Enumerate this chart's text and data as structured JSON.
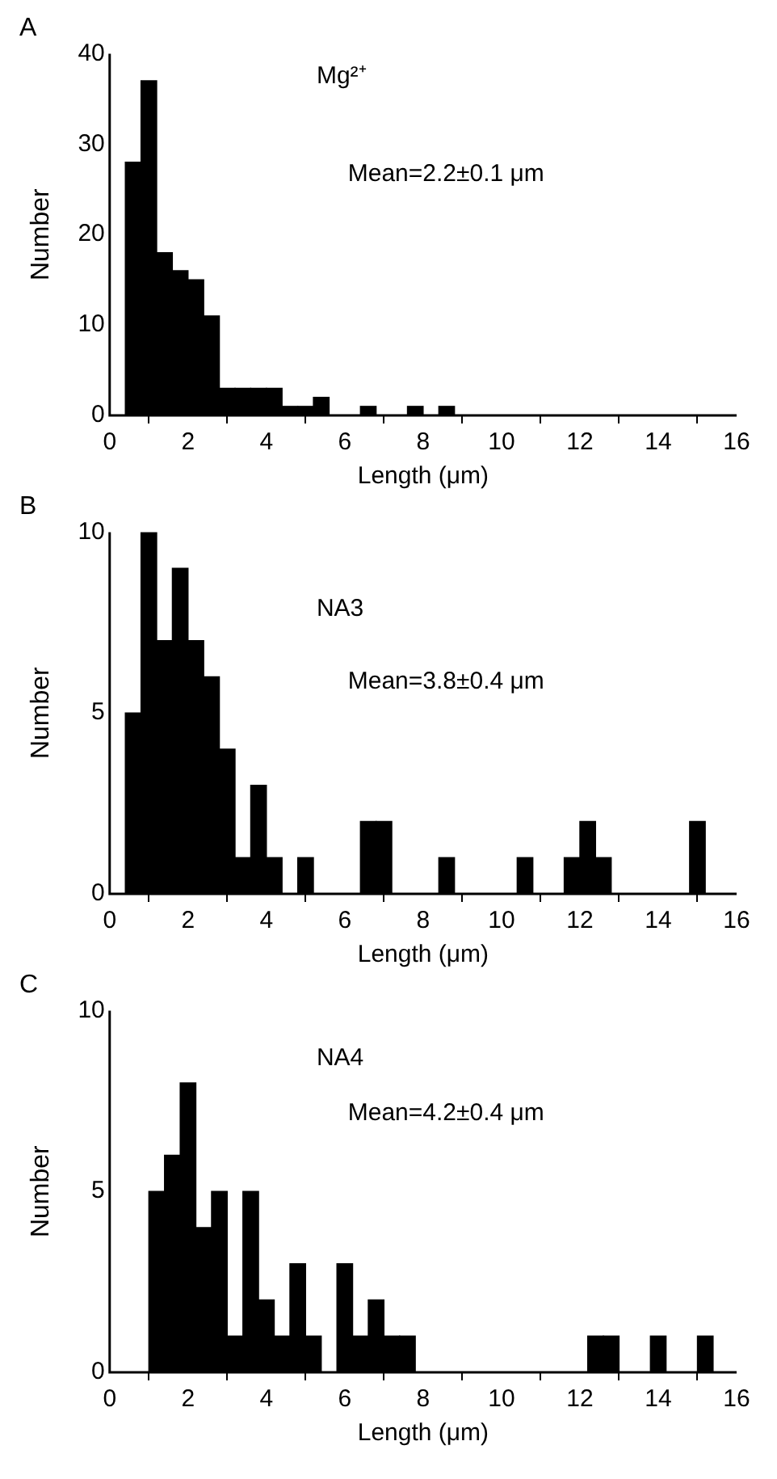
{
  "chart_data": [
    {
      "type": "histogram",
      "title": "A",
      "xlabel": "Length (μm)",
      "ylabel": "Number",
      "annotations": [
        "Mg²⁺",
        "Mean=2.2±0.1 μm"
      ],
      "color": "#000000",
      "bins": [
        0,
        0.4,
        0.8,
        1.2,
        1.6,
        2,
        2.4,
        2.8,
        3.2,
        3.6,
        4,
        4.4,
        4.8,
        5.2,
        5.6,
        6,
        6.4,
        6.8,
        7.2,
        7.6,
        8,
        8.4,
        8.8,
        9.2,
        9.6,
        10,
        10.4,
        10.8,
        11.2,
        11.6,
        12,
        12.4,
        12.8,
        13.2,
        13.6,
        14,
        14.4,
        14.8,
        15.2,
        15.6,
        16
      ],
      "values": [
        0,
        28,
        37,
        18,
        16,
        15,
        11,
        3,
        3,
        3,
        3,
        1,
        1,
        2,
        0,
        0,
        1,
        0,
        0,
        1,
        0,
        1,
        0,
        0,
        0,
        0,
        0,
        0,
        0,
        0,
        0,
        0,
        0,
        0,
        0,
        0,
        0,
        0,
        0,
        0
      ],
      "xlim": [
        0,
        16
      ],
      "xticks": [
        0,
        2,
        4,
        6,
        8,
        10,
        12,
        14,
        16
      ],
      "ylim": [
        0,
        40
      ],
      "yticks": [
        0,
        10,
        20,
        30,
        40
      ]
    },
    {
      "type": "histogram",
      "title": "B",
      "xlabel": "Length (μm)",
      "ylabel": "Number",
      "annotations": [
        "NA3",
        "Mean=3.8±0.4 μm"
      ],
      "color": "#000000",
      "bins": [
        0,
        0.4,
        0.8,
        1.2,
        1.6,
        2,
        2.4,
        2.8,
        3.2,
        3.6,
        4,
        4.4,
        4.8,
        5.2,
        5.6,
        6,
        6.4,
        6.8,
        7.2,
        7.6,
        8,
        8.4,
        8.8,
        9.2,
        9.6,
        10,
        10.4,
        10.8,
        11.2,
        11.6,
        12,
        12.4,
        12.8,
        13.2,
        13.6,
        14,
        14.4,
        14.8,
        15.2,
        15.6,
        16
      ],
      "values": [
        0,
        5,
        10,
        7,
        9,
        7,
        6,
        4,
        1,
        3,
        1,
        0,
        1,
        0,
        0,
        0,
        2,
        2,
        0,
        0,
        0,
        1,
        0,
        0,
        0,
        0,
        1,
        0,
        0,
        1,
        2,
        1,
        0,
        0,
        0,
        0,
        0,
        2,
        0,
        0
      ],
      "xlim": [
        0,
        16
      ],
      "xticks": [
        0,
        2,
        4,
        6,
        8,
        10,
        12,
        14,
        16
      ],
      "ylim": [
        0,
        10
      ],
      "yticks": [
        0,
        5,
        10
      ]
    },
    {
      "type": "histogram",
      "title": "C",
      "xlabel": "Length (μm)",
      "ylabel": "Number",
      "annotations": [
        "NA4",
        "Mean=4.2±0.4 μm"
      ],
      "color": "#000000",
      "bins": [
        0.2,
        0.6,
        1,
        1.4,
        1.8,
        2.2,
        2.6,
        3,
        3.4,
        3.8,
        4.2,
        4.6,
        5,
        5.4,
        5.8,
        6.2,
        6.6,
        7,
        7.4,
        7.8,
        8.2,
        8.6,
        9,
        9.4,
        9.8,
        10.2,
        10.6,
        11,
        11.4,
        11.8,
        12.2,
        12.6,
        13,
        13.4,
        13.8,
        14.2,
        14.6,
        15,
        15.4,
        15.8
      ],
      "values": [
        0,
        0,
        5,
        6,
        8,
        4,
        5,
        1,
        5,
        2,
        1,
        3,
        1,
        0,
        3,
        1,
        2,
        1,
        1,
        0,
        0,
        0,
        0,
        0,
        0,
        0,
        0,
        0,
        0,
        0,
        1,
        1,
        0,
        0,
        1,
        0,
        0,
        1,
        0
      ],
      "xlim": [
        0,
        16
      ],
      "xticks": [
        0,
        2,
        4,
        6,
        8,
        10,
        12,
        14,
        16
      ],
      "ylim": [
        0,
        10
      ],
      "yticks": [
        0,
        5,
        10
      ]
    }
  ]
}
